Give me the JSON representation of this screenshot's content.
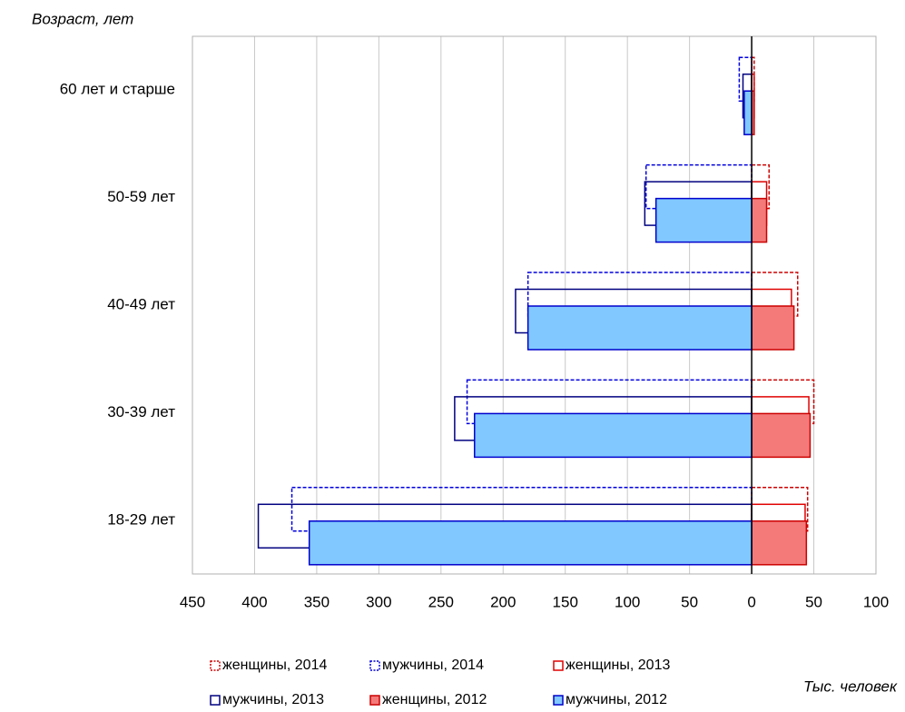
{
  "chart_data": {
    "type": "bar",
    "orientation": "horizontal",
    "y_label": "Возраст, лет",
    "x_label": "Тыс. человек",
    "categories": [
      "60 лет и старше",
      "50-59 лет",
      "40-49 лет",
      "30-39 лет",
      "18-29 лет"
    ],
    "series": [
      {
        "name": "женщины, 2014",
        "color": "#cc0000",
        "style": "dashed",
        "values": [
          2,
          14,
          37,
          50,
          45
        ]
      },
      {
        "name": "мужчины, 2014",
        "color": "#0000dd",
        "style": "dashed",
        "values": [
          -10,
          -85,
          -180,
          -229,
          -370
        ]
      },
      {
        "name": "женщины, 2013",
        "color": "#e00000",
        "style": "outline",
        "values": [
          2,
          12,
          32,
          46,
          43
        ]
      },
      {
        "name": "мужчины, 2013",
        "color": "#000080",
        "style": "outline",
        "values": [
          -7,
          -86,
          -190,
          -239,
          -397
        ]
      },
      {
        "name": "женщины, 2012",
        "color": "#cc0000",
        "fill": "#f47a7a",
        "style": "filled",
        "values": [
          2,
          12,
          34,
          47,
          44
        ]
      },
      {
        "name": "мужчины, 2012",
        "color": "#0000cc",
        "fill": "#80c8ff",
        "style": "filled",
        "values": [
          -6,
          -77,
          -180,
          -223,
          -356
        ]
      }
    ],
    "xlim": [
      -450,
      100
    ],
    "xticks": [
      {
        "value": -450,
        "label": "450"
      },
      {
        "value": -400,
        "label": "400"
      },
      {
        "value": -350,
        "label": "350"
      },
      {
        "value": -300,
        "label": "300"
      },
      {
        "value": -250,
        "label": "250"
      },
      {
        "value": -200,
        "label": "200"
      },
      {
        "value": -150,
        "label": "150"
      },
      {
        "value": -100,
        "label": "100"
      },
      {
        "value": -50,
        "label": "50"
      },
      0,
      50,
      100
    ],
    "grid": true
  }
}
